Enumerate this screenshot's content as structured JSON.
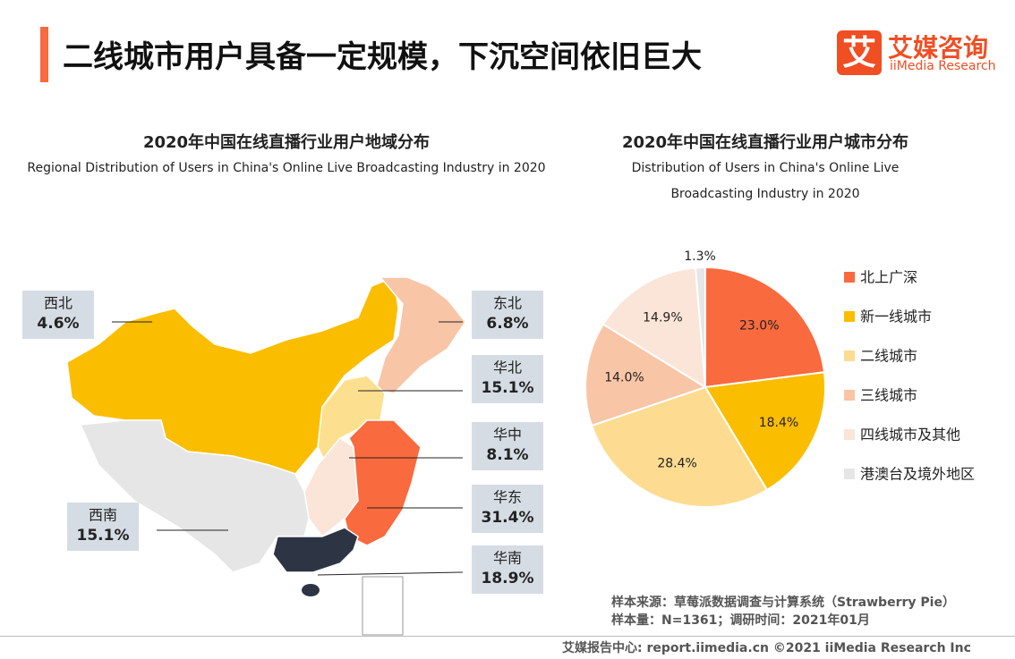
{
  "header": {
    "title": "二线城市用户具备一定规模，下沉空间依旧巨大"
  },
  "logo": {
    "mark": "艾",
    "name": "艾媒咨询",
    "en": "iiMedia Research"
  },
  "chart_data": [
    {
      "type": "map",
      "title": "2020年中国在线直播行业用户地域分布",
      "subtitle": "Regional Distribution of Users in China's Online Live Broadcasting Industry in 2020",
      "categories": [
        "西北",
        "东北",
        "华北",
        "华中",
        "华东",
        "西南",
        "华南"
      ],
      "values": [
        4.6,
        6.8,
        15.1,
        8.1,
        31.4,
        15.1,
        18.9
      ],
      "value_labels": [
        "4.6%",
        "6.8%",
        "15.1%",
        "8.1%",
        "31.4%",
        "15.1%",
        "18.9%"
      ],
      "colors": [
        "#fbbd00",
        "#f8c5a6",
        "#fde08f",
        "#fbe4d8",
        "#f96a3e",
        "#e6e6e6",
        "#2d3444"
      ]
    },
    {
      "type": "pie",
      "title": "2020年中国在线直播行业用户城市分布",
      "subtitle": "Distribution of Users in China's Online Live Broadcasting Industry in 2020",
      "categories": [
        "北上广深",
        "新一线城市",
        "二线城市",
        "三线城市",
        "四线城市及其他",
        "港澳台及境外地区"
      ],
      "values": [
        23.0,
        18.4,
        28.4,
        14.0,
        14.9,
        1.3
      ],
      "value_labels": [
        "23.0%",
        "18.4%",
        "28.4%",
        "14.0%",
        "14.9%",
        "1.3%"
      ],
      "colors": [
        "#f96a3e",
        "#fbbd00",
        "#fddc91",
        "#f8c5a6",
        "#fbe4d8",
        "#e6e6e6"
      ]
    }
  ],
  "source": {
    "lines": [
      "样本来源：草莓派数据调查与计算系统（Strawberry Pie）",
      "样本量：N=1361；调研时间：2021年01月"
    ]
  },
  "footer": {
    "text": "艾媒报告中心: report.iimedia.cn   ©2021  iiMedia Research  Inc"
  }
}
